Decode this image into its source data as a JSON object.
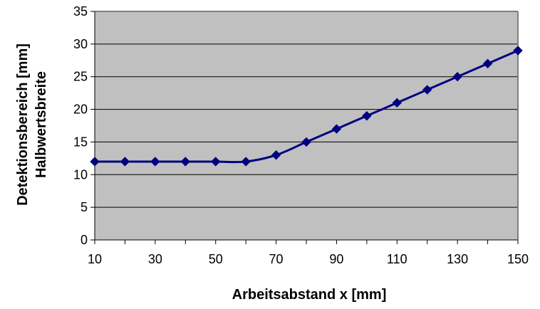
{
  "chart_data": {
    "type": "line",
    "title": "",
    "xlabel": "Arbeitsabstand x [mm]",
    "ylabel_lines": [
      "Detektionsbereich [mm]",
      "Halbwertsbreite"
    ],
    "x": [
      10,
      20,
      30,
      40,
      50,
      60,
      70,
      80,
      90,
      100,
      110,
      120,
      130,
      140,
      150
    ],
    "series": [
      {
        "values": [
          12,
          12,
          12,
          12,
          12,
          12,
          13,
          15,
          17,
          19,
          21,
          23,
          25,
          27,
          29
        ]
      }
    ],
    "xlim": [
      10,
      150
    ],
    "ylim": [
      0,
      35
    ],
    "x_ticks": [
      "10",
      "30",
      "50",
      "70",
      "90",
      "110",
      "130",
      "150"
    ],
    "y_ticks": [
      "0",
      "5",
      "10",
      "15",
      "20",
      "25",
      "30",
      "35"
    ],
    "grid": "horizontal",
    "legend": "none",
    "marker": "diamond",
    "colors": {
      "plot_background": "#c0c0c0",
      "line": "#000080",
      "grid": "#000000",
      "frame": "#808080"
    }
  }
}
